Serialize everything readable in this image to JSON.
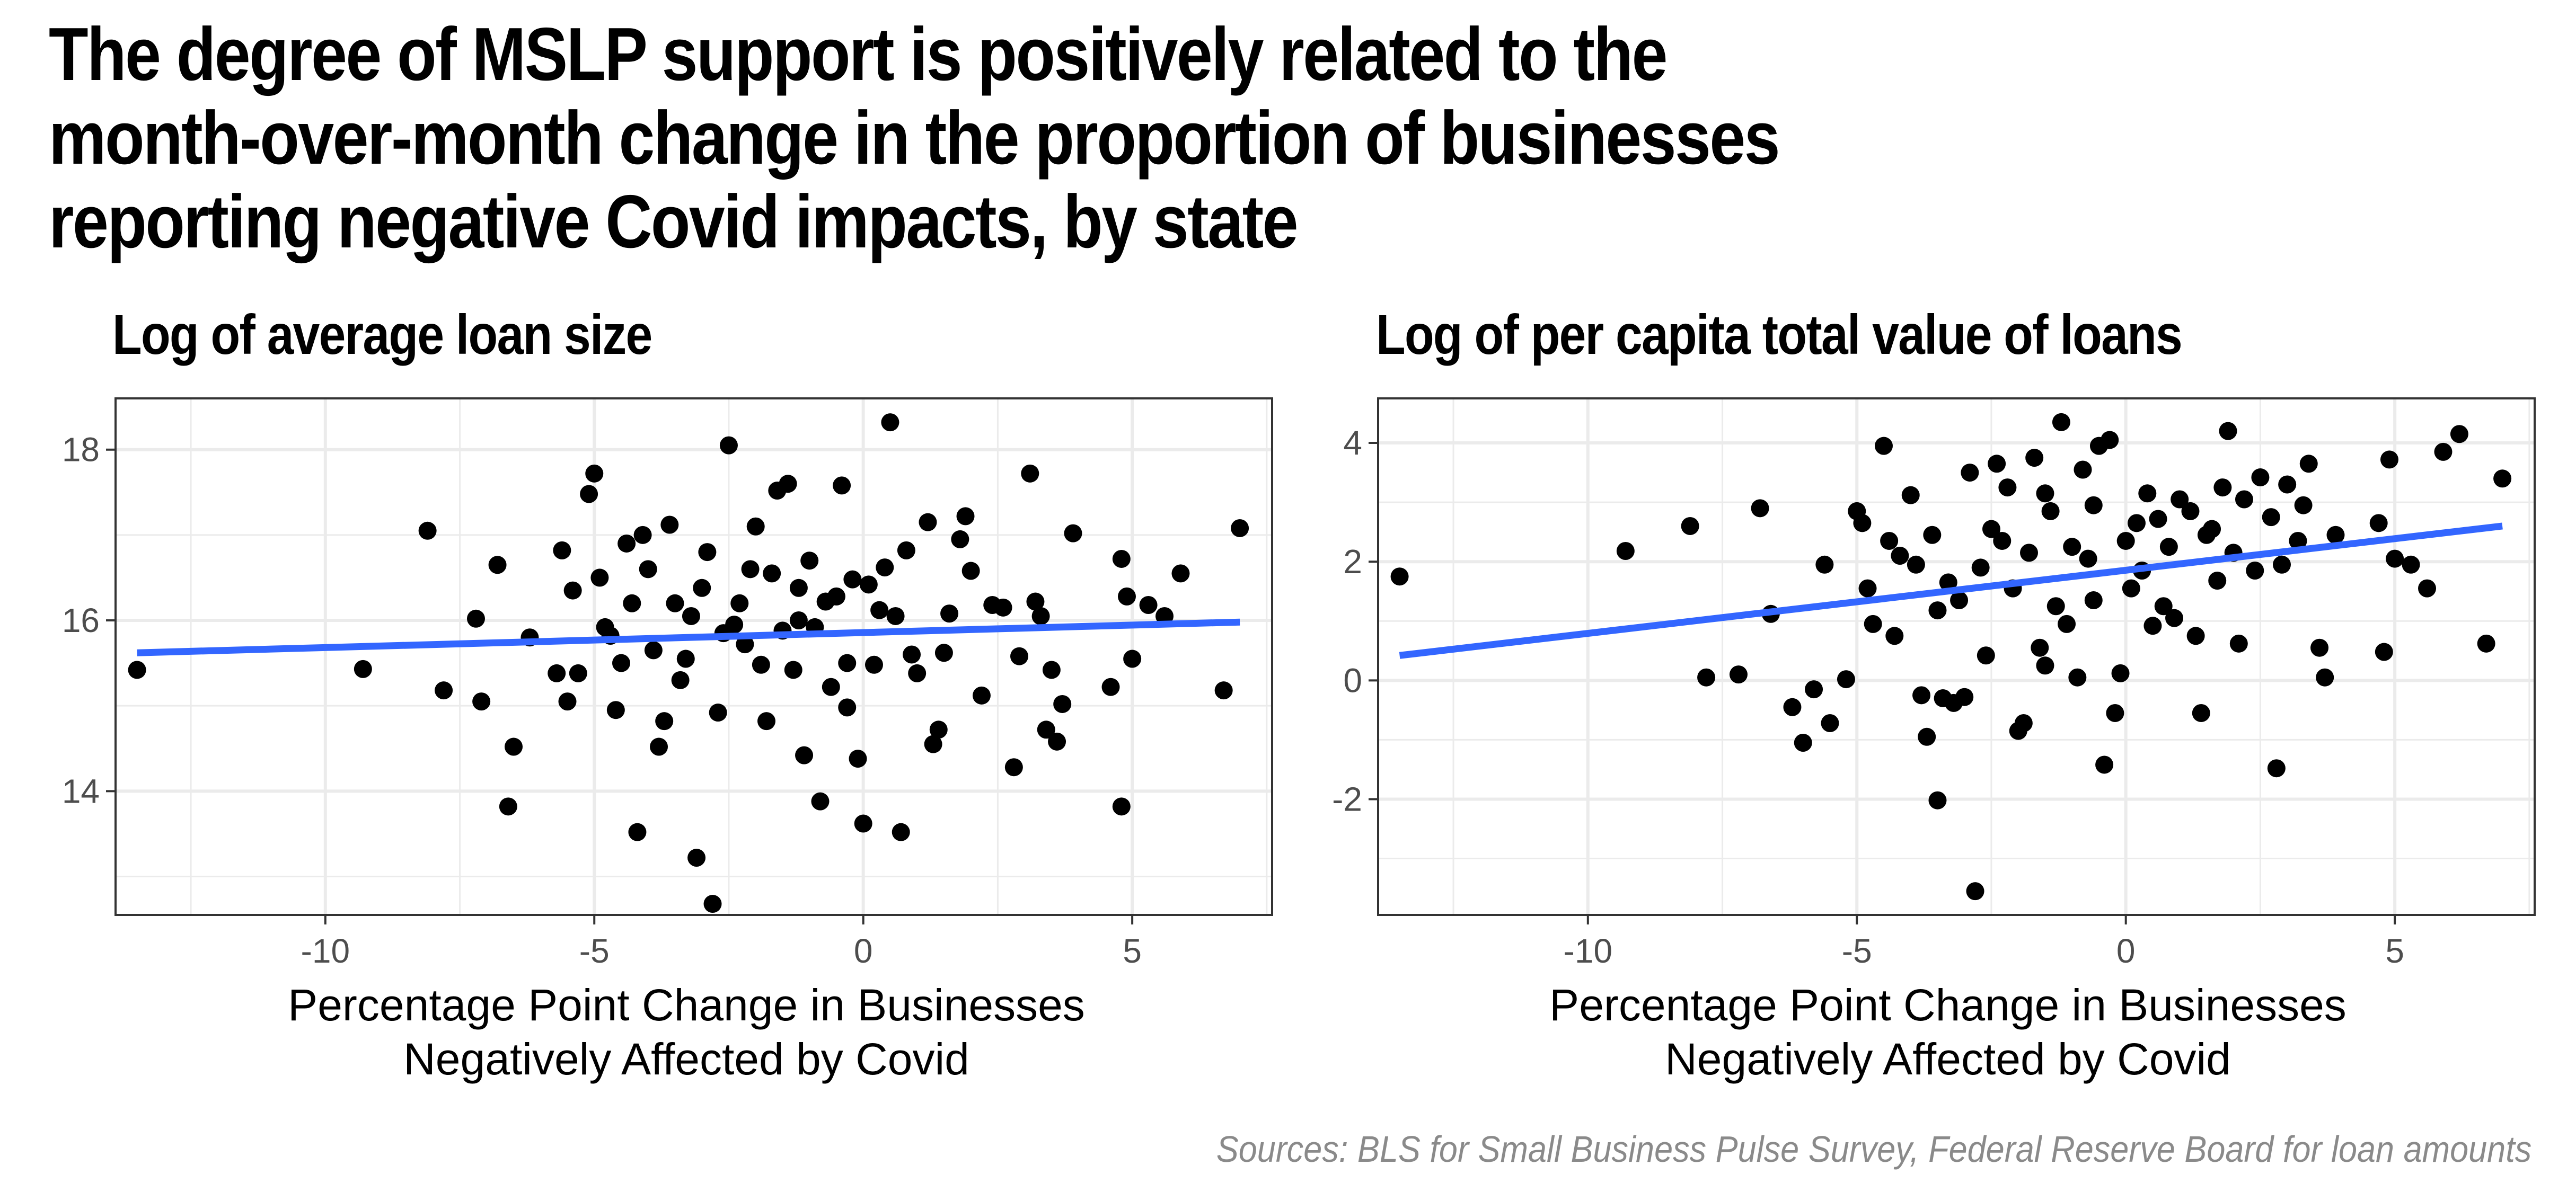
{
  "title": "The degree of MSLP support is positively related to the month-over-month change in the proportion of businesses reporting negative Covid impacts, by state",
  "source": "Sources: BLS for Small Business Pulse Survey, Federal Reserve Board for loan amounts",
  "colors": {
    "points": "#000000",
    "trend_line": "#3366ff",
    "grid": "#ebebeb",
    "panel_border": "#333333",
    "source_text": "#8a8a8a"
  },
  "chart_data": [
    {
      "type": "scatter",
      "title": "Log of average loan size",
      "xlabel": "Percentage Point Change in Businesses Negatively Affected by Covid",
      "xlabel_lines": [
        "Percentage Point Change in Businesses",
        "Negatively Affected by Covid"
      ],
      "ylabel": "",
      "xlim": [
        -13.9,
        7.6
      ],
      "ylim": [
        12.55,
        18.6
      ],
      "x_ticks": [
        -10,
        -5,
        0,
        5
      ],
      "x_tick_labels": [
        "-10",
        "-5",
        "0",
        "5"
      ],
      "y_ticks": [
        14,
        16,
        18
      ],
      "y_tick_labels": [
        "14",
        "16",
        "18"
      ],
      "grid": true,
      "trend_line": {
        "x": [
          -13.5,
          7.0
        ],
        "y": [
          15.62,
          15.98
        ]
      },
      "points": [
        [
          -13.5,
          15.42
        ],
        [
          -9.3,
          15.43
        ],
        [
          -8.1,
          17.05
        ],
        [
          -7.8,
          15.18
        ],
        [
          -7.2,
          16.02
        ],
        [
          -7.1,
          15.05
        ],
        [
          -6.8,
          16.65
        ],
        [
          -6.6,
          13.82
        ],
        [
          -6.5,
          14.52
        ],
        [
          -6.2,
          15.8
        ],
        [
          -5.7,
          15.38
        ],
        [
          -5.6,
          16.82
        ],
        [
          -5.5,
          15.05
        ],
        [
          -5.4,
          16.35
        ],
        [
          -5.1,
          17.48
        ],
        [
          -5.0,
          17.72
        ],
        [
          -4.9,
          16.5
        ],
        [
          -4.8,
          15.92
        ],
        [
          -4.7,
          15.82
        ],
        [
          -4.6,
          14.95
        ],
        [
          -4.4,
          16.9
        ],
        [
          -4.3,
          16.2
        ],
        [
          -4.2,
          13.52
        ],
        [
          -4.1,
          17.0
        ],
        [
          -4.0,
          16.6
        ],
        [
          -3.9,
          15.65
        ],
        [
          -3.8,
          14.52
        ],
        [
          -3.6,
          17.12
        ],
        [
          -3.5,
          16.2
        ],
        [
          -3.4,
          15.3
        ],
        [
          -3.3,
          15.55
        ],
        [
          -3.2,
          16.05
        ],
        [
          -3.1,
          13.22
        ],
        [
          -3.0,
          16.38
        ],
        [
          -2.9,
          16.8
        ],
        [
          -2.8,
          12.68
        ],
        [
          -2.7,
          14.92
        ],
        [
          -2.6,
          15.85
        ],
        [
          -2.5,
          18.05
        ],
        [
          -2.4,
          15.95
        ],
        [
          -2.2,
          15.72
        ],
        [
          -2.1,
          16.6
        ],
        [
          -2.0,
          17.1
        ],
        [
          -1.9,
          15.48
        ],
        [
          -1.8,
          14.82
        ],
        [
          -1.7,
          16.55
        ],
        [
          -1.6,
          17.52
        ],
        [
          -1.5,
          15.88
        ],
        [
          -1.4,
          17.6
        ],
        [
          -1.3,
          15.42
        ],
        [
          -1.2,
          16.38
        ],
        [
          -1.1,
          14.42
        ],
        [
          -1.0,
          16.7
        ],
        [
          -0.9,
          15.92
        ],
        [
          -0.8,
          13.88
        ],
        [
          -0.7,
          16.22
        ],
        [
          -0.6,
          15.22
        ],
        [
          -0.5,
          16.28
        ],
        [
          -0.4,
          17.58
        ],
        [
          -0.3,
          14.98
        ],
        [
          -0.2,
          16.48
        ],
        [
          -0.1,
          14.38
        ],
        [
          0.0,
          13.62
        ],
        [
          0.1,
          16.42
        ],
        [
          0.2,
          15.48
        ],
        [
          0.3,
          16.12
        ],
        [
          0.4,
          16.62
        ],
        [
          0.5,
          18.32
        ],
        [
          0.6,
          16.05
        ],
        [
          0.7,
          13.52
        ],
        [
          0.8,
          16.82
        ],
        [
          1.0,
          15.38
        ],
        [
          1.2,
          17.15
        ],
        [
          1.4,
          14.72
        ],
        [
          1.5,
          15.62
        ],
        [
          1.6,
          16.08
        ],
        [
          1.8,
          16.95
        ],
        [
          1.9,
          17.22
        ],
        [
          2.0,
          16.58
        ],
        [
          2.2,
          15.12
        ],
        [
          2.4,
          16.18
        ],
        [
          2.6,
          16.15
        ],
        [
          2.8,
          14.28
        ],
        [
          2.9,
          15.58
        ],
        [
          3.1,
          17.72
        ],
        [
          3.2,
          16.22
        ],
        [
          3.3,
          16.05
        ],
        [
          3.5,
          15.42
        ],
        [
          3.6,
          14.58
        ],
        [
          3.7,
          15.02
        ],
        [
          3.9,
          17.02
        ],
        [
          4.6,
          15.22
        ],
        [
          4.8,
          16.72
        ],
        [
          4.9,
          16.28
        ],
        [
          5.0,
          15.55
        ],
        [
          5.3,
          16.18
        ],
        [
          5.6,
          16.05
        ],
        [
          5.9,
          16.55
        ],
        [
          6.7,
          15.18
        ],
        [
          7.0,
          17.08
        ],
        [
          -5.3,
          15.38
        ],
        [
          -4.5,
          15.5
        ],
        [
          -3.7,
          14.82
        ],
        [
          -2.3,
          16.2
        ],
        [
          -1.2,
          16.0
        ],
        [
          0.9,
          15.6
        ],
        [
          3.4,
          14.72
        ],
        [
          4.8,
          13.82
        ],
        [
          -0.3,
          15.5
        ],
        [
          1.3,
          14.55
        ]
      ]
    },
    {
      "type": "scatter",
      "title": "Log of per capita total value of loans",
      "xlabel": "Percentage Point Change in Businesses Negatively Affected by Covid",
      "xlabel_lines": [
        "Percentage Point Change in Businesses",
        "Negatively Affected by Covid"
      ],
      "ylabel": "",
      "xlim": [
        -13.9,
        7.6
      ],
      "ylim": [
        -3.95,
        4.75
      ],
      "x_ticks": [
        -10,
        -5,
        0,
        5
      ],
      "x_tick_labels": [
        "-10",
        "-5",
        "0",
        "5"
      ],
      "y_ticks": [
        -2,
        0,
        2,
        4
      ],
      "y_tick_labels": [
        "-2",
        "0",
        "2",
        "4"
      ],
      "grid": true,
      "trend_line": {
        "x": [
          -13.5,
          7.0
        ],
        "y": [
          0.42,
          2.6
        ]
      },
      "points": [
        [
          -13.5,
          1.75
        ],
        [
          -9.3,
          2.18
        ],
        [
          -8.1,
          2.6
        ],
        [
          -7.8,
          0.05
        ],
        [
          -7.2,
          0.1
        ],
        [
          -6.8,
          2.9
        ],
        [
          -6.6,
          1.12
        ],
        [
          -6.2,
          -0.45
        ],
        [
          -6.0,
          -1.05
        ],
        [
          -5.8,
          -0.15
        ],
        [
          -5.5,
          -0.72
        ],
        [
          -5.2,
          0.02
        ],
        [
          -5.0,
          2.85
        ],
        [
          -4.9,
          2.65
        ],
        [
          -4.8,
          1.55
        ],
        [
          -4.7,
          0.95
        ],
        [
          -4.5,
          3.95
        ],
        [
          -4.4,
          2.35
        ],
        [
          -4.2,
          2.1
        ],
        [
          -4.0,
          3.12
        ],
        [
          -3.9,
          1.95
        ],
        [
          -3.8,
          -0.25
        ],
        [
          -3.7,
          -0.95
        ],
        [
          -3.6,
          2.45
        ],
        [
          -3.5,
          1.18
        ],
        [
          -3.4,
          -0.3
        ],
        [
          -3.3,
          1.65
        ],
        [
          -3.2,
          -0.38
        ],
        [
          -3.0,
          -0.28
        ],
        [
          -2.9,
          3.5
        ],
        [
          -2.8,
          -3.55
        ],
        [
          -2.7,
          1.9
        ],
        [
          -2.6,
          0.42
        ],
        [
          -2.5,
          2.55
        ],
        [
          -2.4,
          3.65
        ],
        [
          -2.2,
          3.25
        ],
        [
          -2.1,
          1.55
        ],
        [
          -2.0,
          -0.85
        ],
        [
          -1.9,
          -0.72
        ],
        [
          -1.8,
          2.15
        ],
        [
          -1.7,
          3.75
        ],
        [
          -1.6,
          0.55
        ],
        [
          -1.5,
          3.15
        ],
        [
          -1.4,
          2.85
        ],
        [
          -1.3,
          1.25
        ],
        [
          -1.2,
          4.35
        ],
        [
          -1.1,
          0.95
        ],
        [
          -1.0,
          2.25
        ],
        [
          -0.9,
          0.05
        ],
        [
          -0.8,
          3.55
        ],
        [
          -0.7,
          2.05
        ],
        [
          -0.6,
          1.35
        ],
        [
          -0.5,
          3.95
        ],
        [
          -0.4,
          -1.42
        ],
        [
          -0.3,
          4.05
        ],
        [
          -0.2,
          -0.55
        ],
        [
          -0.1,
          0.12
        ],
        [
          0.0,
          2.35
        ],
        [
          0.1,
          1.55
        ],
        [
          0.2,
          2.65
        ],
        [
          0.3,
          1.85
        ],
        [
          0.4,
          3.15
        ],
        [
          0.5,
          0.92
        ],
        [
          0.6,
          2.72
        ],
        [
          0.7,
          1.25
        ],
        [
          0.8,
          2.25
        ],
        [
          1.0,
          3.05
        ],
        [
          1.2,
          2.85
        ],
        [
          1.3,
          0.75
        ],
        [
          1.4,
          -0.55
        ],
        [
          1.5,
          2.45
        ],
        [
          1.7,
          1.68
        ],
        [
          1.8,
          3.25
        ],
        [
          1.9,
          4.2
        ],
        [
          2.0,
          2.15
        ],
        [
          2.2,
          3.05
        ],
        [
          2.4,
          1.85
        ],
        [
          2.5,
          3.42
        ],
        [
          2.7,
          2.75
        ],
        [
          2.8,
          -1.48
        ],
        [
          2.9,
          1.95
        ],
        [
          3.0,
          3.3
        ],
        [
          3.2,
          2.35
        ],
        [
          3.4,
          3.65
        ],
        [
          3.6,
          0.55
        ],
        [
          3.7,
          0.05
        ],
        [
          3.9,
          2.45
        ],
        [
          4.8,
          0.48
        ],
        [
          4.9,
          3.72
        ],
        [
          5.0,
          2.05
        ],
        [
          5.3,
          1.95
        ],
        [
          5.6,
          1.55
        ],
        [
          5.9,
          3.85
        ],
        [
          6.2,
          4.15
        ],
        [
          6.7,
          0.62
        ],
        [
          7.0,
          3.4
        ],
        [
          -5.6,
          1.95
        ],
        [
          -4.3,
          0.75
        ],
        [
          -3.1,
          1.35
        ],
        [
          -1.5,
          0.25
        ],
        [
          -0.6,
          2.95
        ],
        [
          0.9,
          1.05
        ],
        [
          2.1,
          0.62
        ],
        [
          3.3,
          2.95
        ],
        [
          -2.3,
          2.35
        ],
        [
          1.6,
          2.55
        ],
        [
          -3.5,
          -2.02
        ],
        [
          4.7,
          2.65
        ]
      ]
    }
  ]
}
